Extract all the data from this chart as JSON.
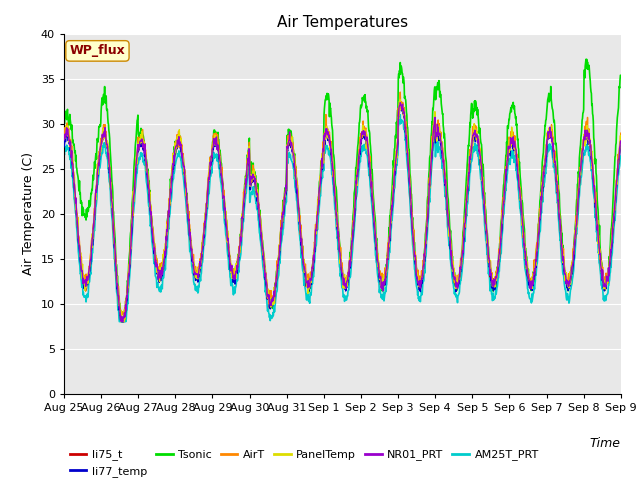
{
  "title": "Air Temperatures",
  "xlabel": "Time",
  "ylabel": "Air Temperature (C)",
  "ylim": [
    0,
    40
  ],
  "yticks": [
    0,
    5,
    10,
    15,
    20,
    25,
    30,
    35,
    40
  ],
  "date_labels": [
    "Aug 25",
    "Aug 26",
    "Aug 27",
    "Aug 28",
    "Aug 29",
    "Aug 30",
    "Aug 31",
    "Sep 1",
    "Sep 2",
    "Sep 3",
    "Sep 4",
    "Sep 5",
    "Sep 6",
    "Sep 7",
    "Sep 8",
    "Sep 9"
  ],
  "series": {
    "li75_t": {
      "color": "#cc0000",
      "lw": 1.0,
      "zorder": 3
    },
    "li77_temp": {
      "color": "#0000cc",
      "lw": 1.0,
      "zorder": 3
    },
    "Tsonic": {
      "color": "#00dd00",
      "lw": 1.2,
      "zorder": 2
    },
    "AirT": {
      "color": "#ff8800",
      "lw": 1.0,
      "zorder": 3
    },
    "PanelTemp": {
      "color": "#dddd00",
      "lw": 1.0,
      "zorder": 3
    },
    "NR01_PRT": {
      "color": "#9900cc",
      "lw": 1.0,
      "zorder": 3
    },
    "AM25T_PRT": {
      "color": "#00cccc",
      "lw": 1.2,
      "zorder": 2
    }
  },
  "legend_order": [
    "li75_t",
    "li77_temp",
    "Tsonic",
    "AirT",
    "PanelTemp",
    "NR01_PRT",
    "AM25T_PRT"
  ],
  "wp_flux_label": "WP_flux",
  "wp_flux_color": "#8b0000",
  "wp_flux_bg": "#ffffcc",
  "background_color": "#e8e8e8",
  "title_fontsize": 11,
  "axis_label_fontsize": 9,
  "tick_fontsize": 8,
  "legend_fontsize": 8
}
